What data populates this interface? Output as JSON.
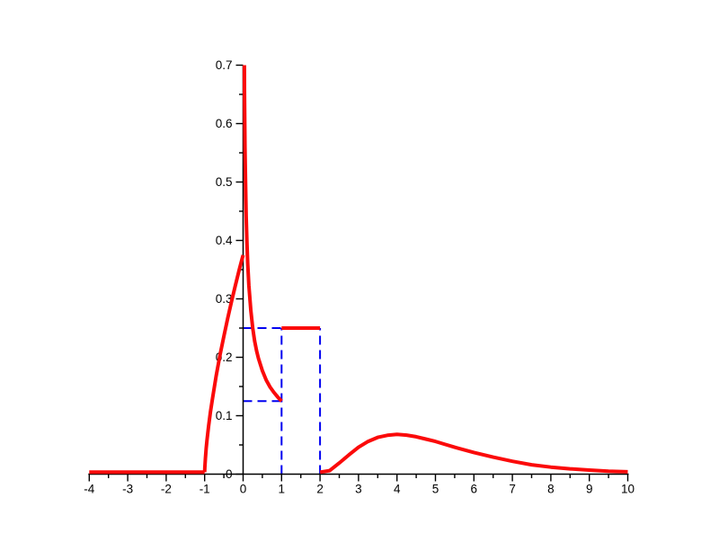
{
  "figure": {
    "background": "#ffffff",
    "title": ""
  },
  "chart_data": {
    "type": "line",
    "title": "",
    "xlabel": "",
    "ylabel": "",
    "grid": false,
    "legend": "none",
    "axes_style": "cross-at-origin",
    "axis_color": "#000000",
    "xlim": [
      -4,
      10
    ],
    "ylim": [
      0,
      0.7
    ],
    "x_axis": {
      "ticks": [
        -4,
        -3,
        -2,
        -1,
        0,
        1,
        2,
        3,
        4,
        5,
        6,
        7,
        8,
        9,
        10
      ],
      "labels": [
        "-4",
        "-3",
        "-2",
        "-1",
        "0",
        "1",
        "2",
        "3",
        "4",
        "5",
        "6",
        "7",
        "8",
        "9",
        "10"
      ],
      "minor_step": 0.5
    },
    "y_axis": {
      "ticks": [
        0,
        0.1,
        0.2,
        0.3,
        0.4,
        0.5,
        0.6,
        0.7
      ],
      "labels": [
        "0",
        "0.1",
        "0.2",
        "0.3",
        "0.4",
        "0.5",
        "0.6",
        "0.7"
      ],
      "minor_step": 0.05
    },
    "series": [
      {
        "name": "guide-lines",
        "color": "#0000f0",
        "style": "dashed",
        "width": 2,
        "segments": [
          {
            "name": "h-guide-0p25",
            "points": [
              [
                0,
                0.25
              ],
              [
                1,
                0.25
              ]
            ]
          },
          {
            "name": "h-guide-0p125",
            "points": [
              [
                0,
                0.125
              ],
              [
                1,
                0.125
              ]
            ]
          },
          {
            "name": "v-guide-x1",
            "points": [
              [
                1,
                0
              ],
              [
                1,
                0.25
              ]
            ]
          },
          {
            "name": "v-guide-x2",
            "points": [
              [
                2,
                0
              ],
              [
                2,
                0.25
              ]
            ]
          }
        ]
      },
      {
        "name": "density-curve",
        "color": "#fb0a0a",
        "style": "solid",
        "width": 4,
        "segments": [
          {
            "name": "zero-left",
            "points": [
              [
                -4,
                0
              ],
              [
                -1,
                0
              ]
            ]
          },
          {
            "name": "left-branch",
            "points": [
              [
                -1,
                0
              ],
              [
                -0.995,
                0.011
              ],
              [
                -0.98,
                0.028
              ],
              [
                -0.96,
                0.044
              ],
              [
                -0.94,
                0.058
              ],
              [
                -0.9,
                0.081
              ],
              [
                -0.85,
                0.106
              ],
              [
                -0.8,
                0.128
              ],
              [
                -0.75,
                0.148
              ],
              [
                -0.7,
                0.168
              ],
              [
                -0.6,
                0.204
              ],
              [
                -0.5,
                0.236
              ],
              [
                -0.4,
                0.267
              ],
              [
                -0.3,
                0.296
              ],
              [
                -0.2,
                0.323
              ],
              [
                -0.1,
                0.35
              ],
              [
                -0.05,
                0.363
              ],
              [
                0,
                0.375
              ]
            ]
          },
          {
            "name": "spike-decay",
            "points": [
              [
                0.032,
                0.7
              ],
              [
                0.036,
                0.659
              ],
              [
                0.04,
                0.625
              ],
              [
                0.05,
                0.559
              ],
              [
                0.06,
                0.51
              ],
              [
                0.08,
                0.442
              ],
              [
                0.1,
                0.395
              ],
              [
                0.12,
                0.361
              ],
              [
                0.15,
                0.323
              ],
              [
                0.2,
                0.28
              ],
              [
                0.25,
                0.25
              ],
              [
                0.3,
                0.228
              ],
              [
                0.35,
                0.211
              ],
              [
                0.4,
                0.198
              ],
              [
                0.5,
                0.177
              ],
              [
                0.6,
                0.161
              ],
              [
                0.7,
                0.149
              ],
              [
                0.8,
                0.14
              ],
              [
                0.9,
                0.132
              ],
              [
                1,
                0.125
              ]
            ]
          },
          {
            "name": "uniform-plateau",
            "points": [
              [
                1,
                0.25
              ],
              [
                2,
                0.25
              ]
            ]
          },
          {
            "name": "right-hump",
            "points": [
              [
                2,
                0
              ],
              [
                2.25,
                0.006
              ],
              [
                2.5,
                0.019
              ],
              [
                2.75,
                0.033
              ],
              [
                3,
                0.046
              ],
              [
                3.25,
                0.056
              ],
              [
                3.5,
                0.063
              ],
              [
                3.75,
                0.0665
              ],
              [
                4,
                0.068
              ],
              [
                4.25,
                0.0668
              ],
              [
                4.5,
                0.064
              ],
              [
                4.75,
                0.06
              ],
              [
                5,
                0.056
              ],
              [
                5.25,
                0.051
              ],
              [
                5.5,
                0.046
              ],
              [
                6,
                0.037
              ],
              [
                6.5,
                0.029
              ],
              [
                7,
                0.022
              ],
              [
                7.5,
                0.016
              ],
              [
                8,
                0.012
              ],
              [
                8.5,
                0.009
              ],
              [
                9,
                0.007
              ],
              [
                9.5,
                0.005
              ],
              [
                10,
                0.004
              ]
            ]
          }
        ]
      }
    ]
  }
}
